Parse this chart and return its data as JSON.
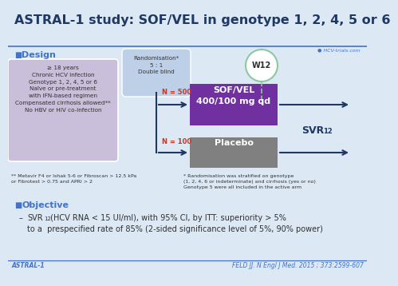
{
  "title": "ASTRAL-1 study: SOF/VEL in genotype 1, 2, 4, 5 or 6",
  "title_color": "#1F3864",
  "title_fontsize": 11.5,
  "bg_color": "#dce9f5",
  "header_line_color": "#4472C4",
  "design_label": "Design",
  "design_color": "#4472C4",
  "objective_label": "Objective",
  "objective_color": "#4472C4",
  "inclusion_box_color": "#C9BFDA",
  "inclusion_box_text": "≥ 18 years\nChronic HCV infection\nGenotype 1, 2, 4, 5 or 6\nNaïve or pre-treatment\nwith IFN-based regimen\nCompensated cirrhosis allowed**\nNo HBV or HIV co-infection",
  "randomisation_box_color": "#BDD0E8",
  "randomisation_text": "Randomisation*\n5 : 1\nDouble blind",
  "w12_circle_edgecolor": "#8CC8A0",
  "w12_text": "W12",
  "sof_vel_box_color": "#7030A0",
  "sof_vel_text": "SOF/VEL\n400/100 mg qd",
  "placebo_box_color": "#808080",
  "placebo_text": "Placebo",
  "n500_text": "N = 500",
  "n100_text": "N = 100",
  "n_color": "#C0392B",
  "svr_label": "SVR",
  "svr_sub": "12",
  "arrow_color": "#1F3864",
  "dashed_line_color": "#8CC8A0",
  "footnote1": "** Metavir F4 or Ishak 5-6 or Fibroscan > 12.5 kPa\nor Fibrotest > 0.75 and APRI > 2",
  "footnote2": "* Randomisation was stratified on genotype\n(1, 2, 4, 6 or indeterminate) and cirrhosis (yes or no)\nGenotype 5 were all included in the active arm",
  "objective_text1": "SVR",
  "objective_sub": "12",
  "objective_text2": " (HCV RNA < 15 UI/ml), with 95% CI, by ITT: superiority > 5%",
  "objective_text3": "to a  prespecified rate of 85% (2-sided significance level of 5%, 90% power)",
  "footer_left": "ASTRAL-1",
  "footer_right": "FELD JJ. N Engl J Med. 2015 ; 373:2599-607",
  "hcv_logo_text": "● HCV-trials.com"
}
